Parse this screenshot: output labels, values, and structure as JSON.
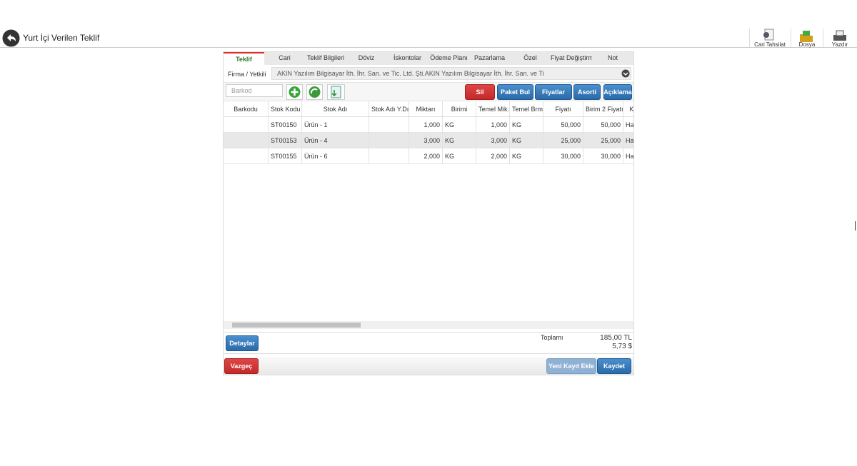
{
  "header": {
    "title": "Yurt İçi Verilen Teklif",
    "actions": [
      "Cari Tahsilat",
      "Dosya",
      "Yazdır"
    ]
  },
  "tabs": [
    "Teklif",
    "Cari",
    "Teklif Bilgileri",
    "Döviz",
    "İskontolar",
    "Ödeme Planı",
    "Pazarlama",
    "Özel",
    "Fiyat Değiştirm",
    "Not"
  ],
  "firm": {
    "label": "Firma / Yetkili",
    "value": "AKIN Yazılım Bilgisayar İth. İhr. San. ve Tic. Ltd. Şti.AKIN Yazılım Bilgisayar İth. İhr. San. ve Ti"
  },
  "toolbar": {
    "barcode_placeholder": "Barkod",
    "buttons": [
      "Sil",
      "Paket Bul",
      "Fiyatlar",
      "Asorti",
      "Açıklama"
    ]
  },
  "table": {
    "columns": [
      "Barkodu",
      "Stok Kodu",
      "Stok Adı",
      "Stok Adı Y.Dı",
      "Miktarı",
      "Birimi",
      "Temel Mik.",
      "Temel Brm",
      "Fiyatı",
      "Birim 2 Fiyatı",
      "KD"
    ],
    "rows": [
      {
        "code": "ST00150",
        "name": "Ürün - 1",
        "qty": "1,000",
        "unit": "KG",
        "base_qty": "1,000",
        "base_unit": "KG",
        "price": "50,000",
        "price2": "50,000",
        "vat": "Ha"
      },
      {
        "code": "ST00153",
        "name": "Ürün - 4",
        "qty": "3,000",
        "unit": "KG",
        "base_qty": "3,000",
        "base_unit": "KG",
        "price": "25,000",
        "price2": "25,000",
        "vat": "Ha"
      },
      {
        "code": "ST00155",
        "name": "Ürün - 6",
        "qty": "2,000",
        "unit": "KG",
        "base_qty": "2,000",
        "base_unit": "KG",
        "price": "30,000",
        "price2": "30,000",
        "vat": "Ha"
      }
    ]
  },
  "footer": {
    "details": "Detaylar",
    "total_label": "Toplamı",
    "totals": [
      "185,00 TL",
      "5,73 $"
    ],
    "cancel": "Vazgeç",
    "new_record": "Yeni Kayıt Ekle",
    "save": "Kaydet"
  }
}
